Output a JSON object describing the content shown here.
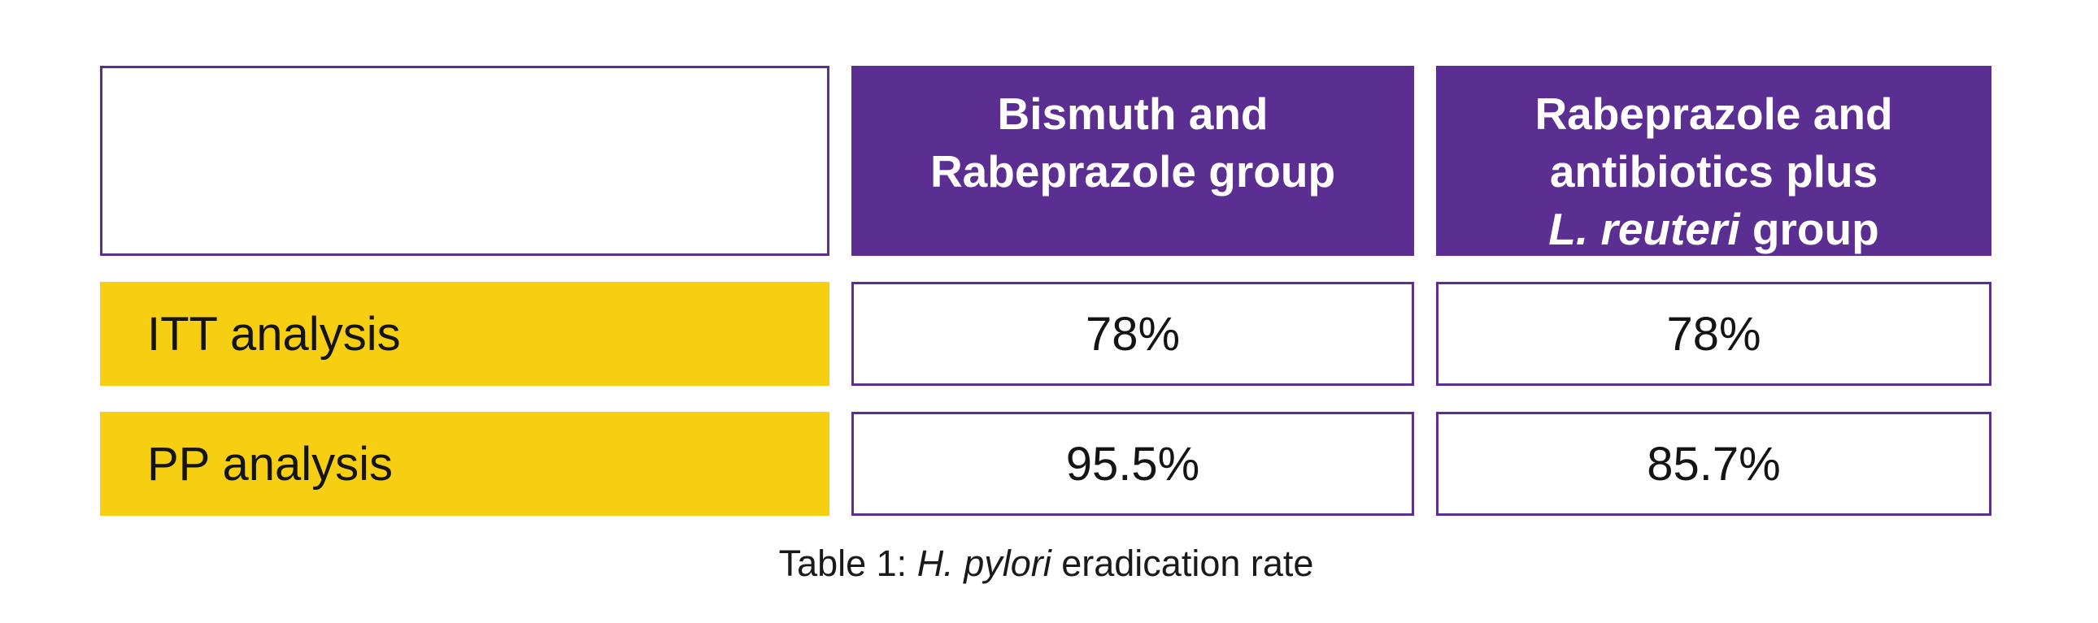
{
  "colors": {
    "purple": "#5b2e91",
    "yellow": "#f7cf12",
    "text_dark": "#141414",
    "header_text": "#ffffff",
    "background": "#ffffff"
  },
  "table": {
    "corner_cell": "",
    "col_headers": [
      {
        "line1": "Bismuth and",
        "line2": "Rabeprazole group"
      },
      {
        "line1": "Rabeprazole and",
        "line2": "antibiotics plus",
        "line3_italic": "L. reuteri",
        "line3_rest": " group"
      }
    ],
    "rows": [
      {
        "label": "ITT analysis",
        "values": [
          "78%",
          "78%"
        ]
      },
      {
        "label": "PP analysis",
        "values": [
          "95.5%",
          "85.7%"
        ]
      }
    ]
  },
  "caption": {
    "prefix": "Table 1: ",
    "italic": "H. pylori",
    "suffix": " eradication rate"
  },
  "chart_data": {
    "type": "table",
    "title": "Table 1: H. pylori eradication rate",
    "columns": [
      "",
      "Bismuth and Rabeprazole group",
      "Rabeprazole and antibiotics plus L. reuteri group"
    ],
    "rows": [
      [
        "ITT analysis",
        "78%",
        "78%"
      ],
      [
        "PP analysis",
        "95.5%",
        "85.7%"
      ]
    ]
  }
}
